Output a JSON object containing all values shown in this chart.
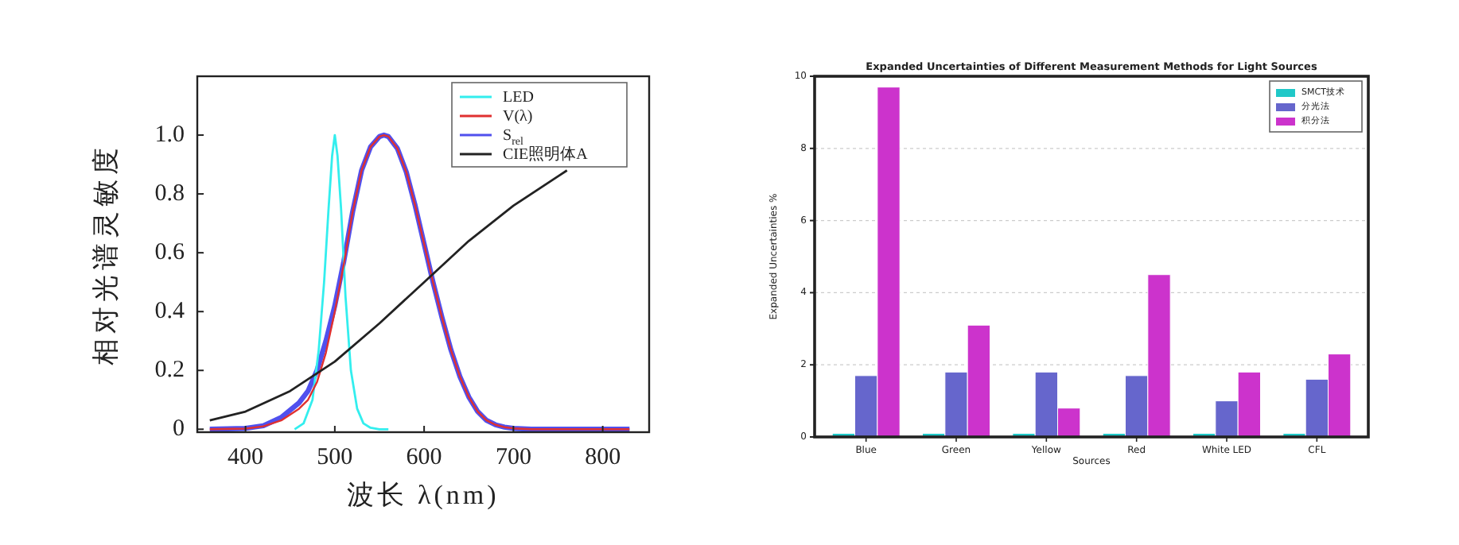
{
  "chart_data": [
    {
      "type": "line",
      "xlabel": "波长 λ(nm)",
      "ylabel": "相对光谱灵敏度",
      "xlim": [
        346,
        852
      ],
      "ylim": [
        -0.01,
        1.2
      ],
      "xticks": [
        400,
        500,
        600,
        700,
        800
      ],
      "yticks": [
        {
          "value": 0,
          "label": "0"
        },
        0.2,
        0.4,
        0.6,
        0.8,
        {
          "value": 1,
          "label": "1.0"
        }
      ],
      "grid": false,
      "legend": "top right",
      "line_style": "solid",
      "marker": "none",
      "series": [
        {
          "name": "LED",
          "color": "#33eeee",
          "x": [
            455,
            465,
            475,
            482,
            488,
            493,
            497,
            500,
            503,
            507,
            512,
            518,
            525,
            532,
            540,
            550,
            560
          ],
          "values": [
            0,
            0.02,
            0.1,
            0.27,
            0.5,
            0.75,
            0.93,
            1.0,
            0.93,
            0.75,
            0.45,
            0.2,
            0.07,
            0.02,
            0.005,
            0,
            0
          ]
        },
        {
          "name": "V(λ)",
          "color": "#e03030",
          "x": [
            360,
            400,
            420,
            440,
            460,
            470,
            480,
            490,
            500,
            510,
            520,
            530,
            540,
            550,
            555,
            560,
            570,
            580,
            590,
            600,
            610,
            620,
            630,
            640,
            650,
            660,
            670,
            680,
            690,
            700,
            720,
            830
          ],
          "values": [
            0,
            0.002,
            0.01,
            0.03,
            0.07,
            0.1,
            0.16,
            0.26,
            0.4,
            0.56,
            0.74,
            0.88,
            0.96,
            0.995,
            1.0,
            0.995,
            0.955,
            0.875,
            0.76,
            0.63,
            0.5,
            0.38,
            0.27,
            0.18,
            0.11,
            0.06,
            0.03,
            0.015,
            0.007,
            0.003,
            0,
            0
          ]
        },
        {
          "name": "S$_{rel}$",
          "color": "#5050ee",
          "x": [
            360,
            400,
            420,
            440,
            460,
            470,
            480,
            490,
            500,
            510,
            520,
            530,
            540,
            550,
            555,
            560,
            570,
            580,
            590,
            600,
            610,
            620,
            630,
            640,
            650,
            660,
            670,
            680,
            690,
            700,
            720,
            830
          ],
          "values": [
            0,
            0.003,
            0.012,
            0.04,
            0.09,
            0.13,
            0.2,
            0.3,
            0.42,
            0.57,
            0.74,
            0.88,
            0.96,
            0.995,
            1.0,
            0.995,
            0.955,
            0.875,
            0.76,
            0.63,
            0.5,
            0.38,
            0.27,
            0.18,
            0.11,
            0.06,
            0.03,
            0.015,
            0.007,
            0.003,
            0,
            0
          ]
        },
        {
          "name": "CIE照明体A",
          "color": "#222222",
          "x": [
            360,
            400,
            450,
            500,
            550,
            600,
            650,
            700,
            750,
            760
          ],
          "values": [
            0.03,
            0.06,
            0.13,
            0.23,
            0.36,
            0.5,
            0.64,
            0.76,
            0.86,
            0.88
          ]
        }
      ]
    },
    {
      "type": "bar",
      "title": "Expanded Uncertainties of Different Measurement Methods for Light Sources",
      "xlabel": "Sources",
      "ylabel": "Expanded Uncertainties %",
      "categories": [
        "Blue",
        "Green",
        "Yellow",
        "Red",
        "White LED",
        "CFL"
      ],
      "ylim": [
        0,
        10
      ],
      "yticks": [
        0,
        2,
        4,
        6,
        8,
        10
      ],
      "grid": "y",
      "legend": "top right",
      "series": [
        {
          "name": "SMCT技术",
          "color": "#20c8c8",
          "values": [
            0.1,
            0.1,
            0.1,
            0.1,
            0.1,
            0.1
          ]
        },
        {
          "name": "分光法",
          "color": "#6666cc",
          "values": [
            1.7,
            1.8,
            1.8,
            1.7,
            1.0,
            1.6
          ]
        },
        {
          "name": "积分法",
          "color": "#cc33cc",
          "values": [
            9.7,
            3.1,
            0.8,
            4.5,
            1.8,
            2.3
          ]
        }
      ]
    }
  ]
}
